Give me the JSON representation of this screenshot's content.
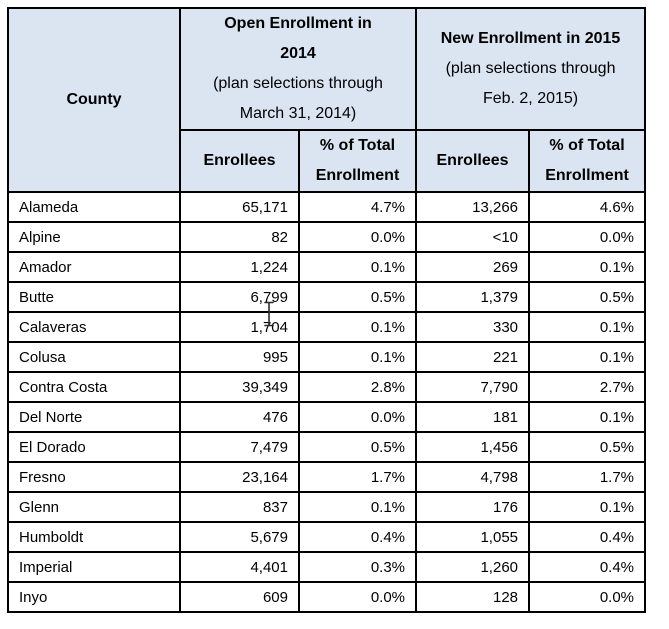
{
  "page": {
    "background_color": "#ffffff",
    "header_bg_color": "#dbe5f1",
    "border_color": "#000000",
    "text_color": "#000000"
  },
  "table": {
    "county_label": "County",
    "group_2014": {
      "bold_lines": [
        "Open Enrollment in",
        "2014"
      ],
      "plain_lines": [
        "(plan selections through",
        "March 31, 2014)"
      ]
    },
    "group_2015": {
      "bold_lines": [
        "New Enrollment in 2015"
      ],
      "plain_lines": [
        "(plan selections through",
        "Feb. 2, 2015)"
      ]
    },
    "subheaders": {
      "enrollees_2014": "Enrollees",
      "pct_2014": "% of Total Enrollment",
      "enrollees_2015": "Enrollees",
      "pct_2015": "% of Total Enrollment"
    },
    "rows": [
      {
        "county": "Alameda",
        "enrollees_2014": "65,171",
        "pct_2014": "4.7%",
        "enrollees_2015": "13,266",
        "pct_2015": "4.6%"
      },
      {
        "county": "Alpine",
        "enrollees_2014": "82",
        "pct_2014": "0.0%",
        "enrollees_2015": "<10",
        "pct_2015": "0.0%"
      },
      {
        "county": "Amador",
        "enrollees_2014": "1,224",
        "pct_2014": "0.1%",
        "enrollees_2015": "269",
        "pct_2015": "0.1%"
      },
      {
        "county": "Butte",
        "enrollees_2014": "6,799",
        "pct_2014": "0.5%",
        "enrollees_2015": "1,379",
        "pct_2015": "0.5%"
      },
      {
        "county": "Calaveras",
        "enrollees_2014": "1,704",
        "pct_2014": "0.1%",
        "enrollees_2015": "330",
        "pct_2015": "0.1%"
      },
      {
        "county": "Colusa",
        "enrollees_2014": "995",
        "pct_2014": "0.1%",
        "enrollees_2015": "221",
        "pct_2015": "0.1%"
      },
      {
        "county": "Contra Costa",
        "enrollees_2014": "39,349",
        "pct_2014": "2.8%",
        "enrollees_2015": "7,790",
        "pct_2015": "2.7%"
      },
      {
        "county": "Del Norte",
        "enrollees_2014": "476",
        "pct_2014": "0.0%",
        "enrollees_2015": "181",
        "pct_2015": "0.1%"
      },
      {
        "county": "El Dorado",
        "enrollees_2014": "7,479",
        "pct_2014": "0.5%",
        "enrollees_2015": "1,456",
        "pct_2015": "0.5%"
      },
      {
        "county": "Fresno",
        "enrollees_2014": "23,164",
        "pct_2014": "1.7%",
        "enrollees_2015": "4,798",
        "pct_2015": "1.7%"
      },
      {
        "county": "Glenn",
        "enrollees_2014": "837",
        "pct_2014": "0.1%",
        "enrollees_2015": "176",
        "pct_2015": "0.1%"
      },
      {
        "county": "Humboldt",
        "enrollees_2014": "5,679",
        "pct_2014": "0.4%",
        "enrollees_2015": "1,055",
        "pct_2015": "0.4%"
      },
      {
        "county": "Imperial",
        "enrollees_2014": "4,401",
        "pct_2014": "0.3%",
        "enrollees_2015": "1,260",
        "pct_2015": "0.4%"
      },
      {
        "county": "Inyo",
        "enrollees_2014": "609",
        "pct_2014": "0.0%",
        "enrollees_2015": "128",
        "pct_2015": "0.0%"
      }
    ]
  },
  "cursor": {
    "type": "text-ibeam",
    "color": "#2b2b2b"
  }
}
